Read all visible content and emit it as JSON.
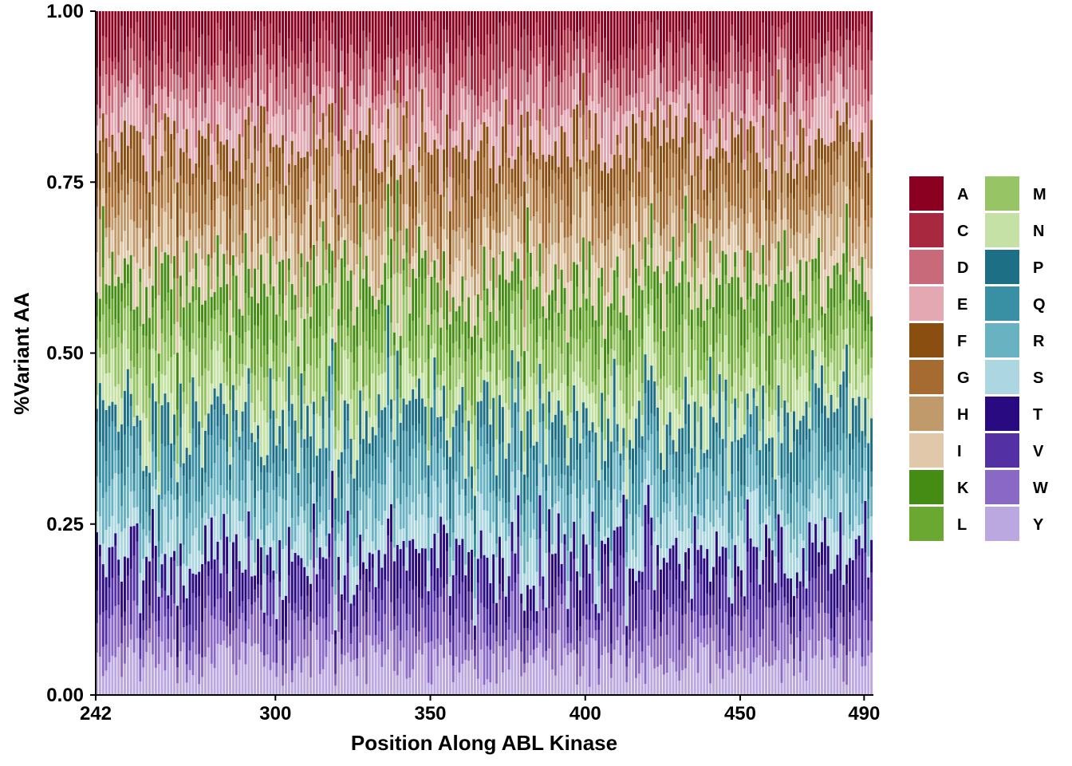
{
  "chart_data": {
    "type": "bar",
    "stacked": true,
    "xlabel": "Position Along ABL Kinase",
    "ylabel": "%Variant AA",
    "xlim": [
      242,
      493
    ],
    "ylim": [
      0,
      1
    ],
    "x_ticks": [
      "242",
      "300",
      "350",
      "400",
      "450",
      "490"
    ],
    "x_tick_values": [
      242,
      300,
      350,
      400,
      450,
      490
    ],
    "y_ticks": [
      "0.00",
      "0.25",
      "0.50",
      "0.75",
      "1.00"
    ],
    "y_tick_values": [
      0,
      0.25,
      0.5,
      0.75,
      1.0
    ],
    "positions_range": [
      242,
      492
    ],
    "stack_order_bottom_to_top": [
      "Y",
      "W",
      "V",
      "T",
      "S",
      "R",
      "Q",
      "P",
      "N",
      "M",
      "L",
      "K",
      "I",
      "H",
      "G",
      "F",
      "E",
      "D",
      "C",
      "A"
    ],
    "approx_mean_fraction_per_aa": {
      "A": 0.05,
      "C": 0.05,
      "D": 0.05,
      "E": 0.05,
      "F": 0.05,
      "G": 0.05,
      "H": 0.05,
      "I": 0.05,
      "K": 0.05,
      "L": 0.05,
      "M": 0.05,
      "N": 0.05,
      "P": 0.05,
      "Q": 0.05,
      "R": 0.05,
      "S": 0.05,
      "T": 0.05,
      "V": 0.05,
      "W": 0.05,
      "Y": 0.05
    },
    "grid": false,
    "legend_placement": "right"
  },
  "legend": {
    "items": [
      {
        "label": "A",
        "color": "#8B0020"
      },
      {
        "label": "C",
        "color": "#A8283F"
      },
      {
        "label": "D",
        "color": "#C96A7A"
      },
      {
        "label": "E",
        "color": "#E4A8B3"
      },
      {
        "label": "F",
        "color": "#8A4E10"
      },
      {
        "label": "G",
        "color": "#A56B30"
      },
      {
        "label": "H",
        "color": "#C19A6B"
      },
      {
        "label": "I",
        "color": "#E1C8AA"
      },
      {
        "label": "K",
        "color": "#458C14"
      },
      {
        "label": "L",
        "color": "#6AA832"
      },
      {
        "label": "M",
        "color": "#97C465"
      },
      {
        "label": "N",
        "color": "#C6E1A6"
      },
      {
        "label": "P",
        "color": "#1C6F85"
      },
      {
        "label": "Q",
        "color": "#3990A4"
      },
      {
        "label": "R",
        "color": "#68B2C2"
      },
      {
        "label": "S",
        "color": "#ADD7E0"
      },
      {
        "label": "T",
        "color": "#2A0A80"
      },
      {
        "label": "V",
        "color": "#5430A5"
      },
      {
        "label": "W",
        "color": "#8A68C6"
      },
      {
        "label": "Y",
        "color": "#BCA8E0"
      }
    ]
  }
}
